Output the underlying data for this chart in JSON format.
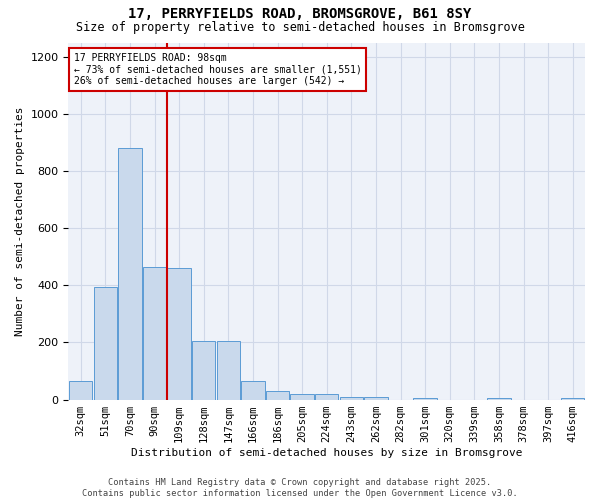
{
  "title": "17, PERRYFIELDS ROAD, BROMSGROVE, B61 8SY",
  "subtitle": "Size of property relative to semi-detached houses in Bromsgrove",
  "xlabel": "Distribution of semi-detached houses by size in Bromsgrove",
  "ylabel": "Number of semi-detached properties",
  "categories": [
    "32sqm",
    "51sqm",
    "70sqm",
    "90sqm",
    "109sqm",
    "128sqm",
    "147sqm",
    "166sqm",
    "186sqm",
    "205sqm",
    "224sqm",
    "243sqm",
    "262sqm",
    "282sqm",
    "301sqm",
    "320sqm",
    "339sqm",
    "358sqm",
    "378sqm",
    "397sqm",
    "416sqm"
  ],
  "values": [
    65,
    395,
    880,
    465,
    460,
    205,
    205,
    65,
    30,
    20,
    20,
    10,
    10,
    0,
    5,
    0,
    0,
    5,
    0,
    0,
    5
  ],
  "bar_color": "#c9d9ec",
  "bar_edge_color": "#5b9bd5",
  "grid_color": "#d0d8e8",
  "bg_color": "#eef2f9",
  "vline_color": "#cc0000",
  "annotation_line1": "17 PERRYFIELDS ROAD: 98sqm",
  "annotation_line2": "← 73% of semi-detached houses are smaller (1,551)",
  "annotation_line3": "26% of semi-detached houses are larger (542) →",
  "annotation_box_color": "#cc0000",
  "ylim": [
    0,
    1250
  ],
  "yticks": [
    0,
    200,
    400,
    600,
    800,
    1000,
    1200
  ],
  "footer": "Contains HM Land Registry data © Crown copyright and database right 2025.\nContains public sector information licensed under the Open Government Licence v3.0."
}
